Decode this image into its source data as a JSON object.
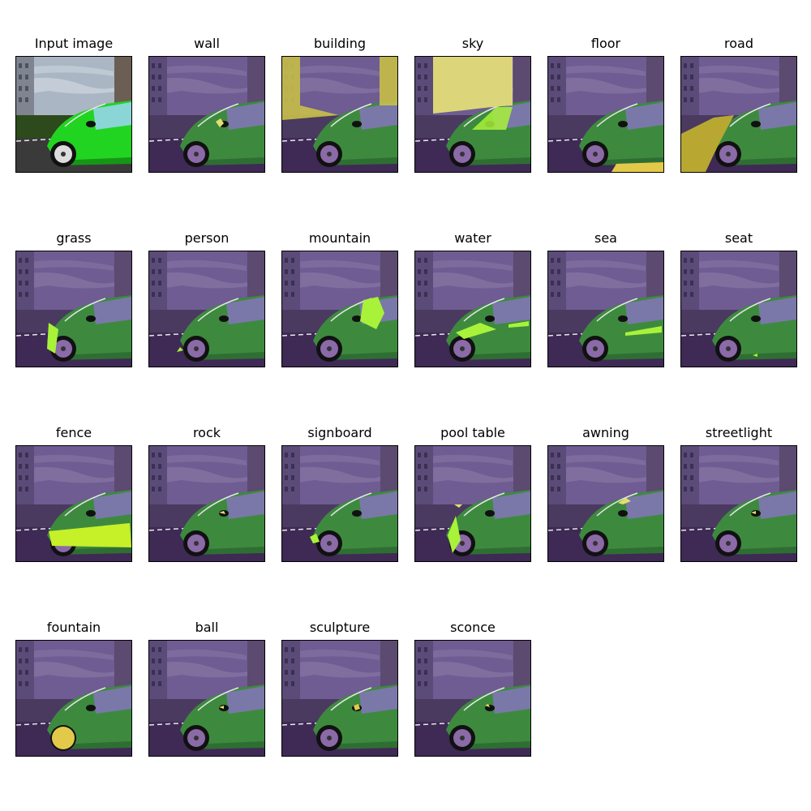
{
  "panels": [
    {
      "title": "Input image",
      "kind": "input"
    },
    {
      "title": "wall",
      "kind": "mask"
    },
    {
      "title": "building",
      "kind": "mask"
    },
    {
      "title": "sky",
      "kind": "mask"
    },
    {
      "title": "floor",
      "kind": "mask"
    },
    {
      "title": "road",
      "kind": "mask"
    },
    {
      "title": "grass",
      "kind": "mask"
    },
    {
      "title": "person",
      "kind": "mask"
    },
    {
      "title": "mountain",
      "kind": "mask"
    },
    {
      "title": "water",
      "kind": "mask"
    },
    {
      "title": "sea",
      "kind": "mask"
    },
    {
      "title": "seat",
      "kind": "mask"
    },
    {
      "title": "fence",
      "kind": "mask"
    },
    {
      "title": "rock",
      "kind": "mask"
    },
    {
      "title": "signboard",
      "kind": "mask"
    },
    {
      "title": "pool table",
      "kind": "mask"
    },
    {
      "title": "awning",
      "kind": "mask"
    },
    {
      "title": "streetlight",
      "kind": "mask"
    },
    {
      "title": "fountain",
      "kind": "mask"
    },
    {
      "title": "ball",
      "kind": "mask"
    },
    {
      "title": "sculpture",
      "kind": "mask"
    },
    {
      "title": "sconce",
      "kind": "mask"
    }
  ],
  "colors": {
    "overlay_sky": "#6e5c92",
    "overlay_car": "#3d8a3f",
    "overlay_ground": "#3e2a55",
    "highlight": "#e3e06a",
    "highlight_green": "#a8f23a"
  }
}
